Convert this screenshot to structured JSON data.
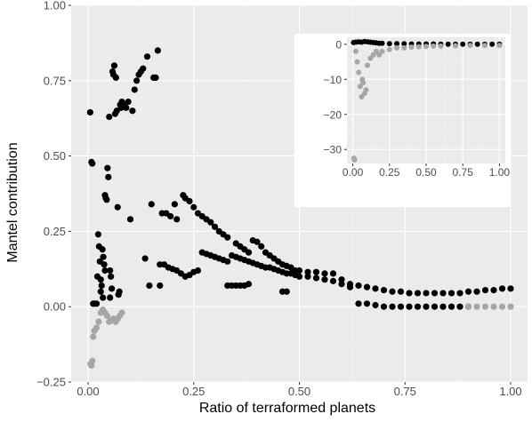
{
  "chart_data": [
    {
      "type": "scatter",
      "title": "",
      "xlabel": "Ratio of terraformed planets",
      "ylabel": "Mantel contribution",
      "xlim": [
        -0.04,
        1.04
      ],
      "ylim": [
        -0.25,
        1.0
      ],
      "x_ticks": [
        0.0,
        0.25,
        0.5,
        0.75,
        1.0
      ],
      "x_tick_labels": [
        "0.00",
        "0.25",
        "0.50",
        "0.75",
        "1.00"
      ],
      "y_ticks": [
        -0.25,
        0.0,
        0.25,
        0.5,
        0.75,
        1.0
      ],
      "y_tick_labels": [
        "−0.25",
        "0.00",
        "0.25",
        "0.50",
        "0.75",
        "1.00"
      ],
      "grid": true,
      "background": "#ebebeb",
      "series": [
        {
          "color": "#000000",
          "points": [
            [
              0.005,
              0.645
            ],
            [
              0.008,
              0.48
            ],
            [
              0.01,
              0.475
            ],
            [
              0.012,
              0.01
            ],
            [
              0.015,
              0.01
            ],
            [
              0.02,
              0.01
            ],
            [
              0.022,
              0.1
            ],
            [
              0.024,
              0.24
            ],
            [
              0.026,
              0.2
            ],
            [
              0.028,
              0.15
            ],
            [
              0.03,
              0.05
            ],
            [
              0.032,
              0.07
            ],
            [
              0.034,
              0.19
            ],
            [
              0.036,
              0.165
            ],
            [
              0.038,
              0.14
            ],
            [
              0.04,
              0.37
            ],
            [
              0.042,
              0.36
            ],
            [
              0.044,
              0.355
            ],
            [
              0.046,
              0.46
            ],
            [
              0.048,
              0.43
            ],
            [
              0.05,
              0.63
            ],
            [
              0.052,
              0.12
            ],
            [
              0.054,
              0.1
            ],
            [
              0.056,
              0.06
            ],
            [
              0.058,
              0.78
            ],
            [
              0.06,
              0.77
            ],
            [
              0.062,
              0.8
            ],
            [
              0.064,
              0.64
            ],
            [
              0.066,
              0.76
            ],
            [
              0.068,
              0.65
            ],
            [
              0.07,
              0.33
            ],
            [
              0.072,
              0.04
            ],
            [
              0.074,
              0.05
            ],
            [
              0.076,
              0.67
            ],
            [
              0.078,
              0.66
            ],
            [
              0.08,
              0.68
            ],
            [
              0.085,
              0.67
            ],
            [
              0.09,
              0.66
            ],
            [
              0.095,
              0.68
            ],
            [
              0.1,
              0.29
            ],
            [
              0.105,
              0.65
            ],
            [
              0.11,
              0.72
            ],
            [
              0.115,
              0.75
            ],
            [
              0.12,
              0.77
            ],
            [
              0.125,
              0.78
            ],
            [
              0.13,
              0.79
            ],
            [
              0.135,
              0.16
            ],
            [
              0.14,
              0.83
            ],
            [
              0.145,
              0.07
            ],
            [
              0.15,
              0.34
            ],
            [
              0.155,
              0.76
            ],
            [
              0.16,
              0.76
            ],
            [
              0.165,
              0.85
            ],
            [
              0.17,
              0.07
            ],
            [
              0.175,
              0.31
            ],
            [
              0.185,
              0.31
            ],
            [
              0.195,
              0.3
            ],
            [
              0.205,
              0.34
            ],
            [
              0.21,
              0.29
            ],
            [
              0.225,
              0.37
            ],
            [
              0.23,
              0.36
            ],
            [
              0.24,
              0.35
            ],
            [
              0.25,
              0.33
            ],
            [
              0.26,
              0.31
            ],
            [
              0.27,
              0.3
            ],
            [
              0.28,
              0.29
            ],
            [
              0.29,
              0.28
            ],
            [
              0.3,
              0.265
            ],
            [
              0.31,
              0.25
            ],
            [
              0.32,
              0.24
            ],
            [
              0.33,
              0.23
            ],
            [
              0.35,
              0.21
            ],
            [
              0.36,
              0.2
            ],
            [
              0.37,
              0.19
            ],
            [
              0.38,
              0.18
            ],
            [
              0.39,
              0.22
            ],
            [
              0.4,
              0.215
            ],
            [
              0.41,
              0.2
            ],
            [
              0.42,
              0.18
            ],
            [
              0.43,
              0.17
            ],
            [
              0.44,
              0.16
            ],
            [
              0.45,
              0.15
            ],
            [
              0.46,
              0.14
            ],
            [
              0.47,
              0.135
            ],
            [
              0.48,
              0.13
            ],
            [
              0.49,
              0.12
            ],
            [
              0.5,
              0.12
            ],
            [
              0.52,
              0.115
            ],
            [
              0.54,
              0.115
            ],
            [
              0.56,
              0.11
            ],
            [
              0.58,
              0.11
            ],
            [
              0.6,
              0.09
            ],
            [
              0.62,
              0.075
            ],
            [
              0.64,
              0.07
            ],
            [
              0.66,
              0.065
            ],
            [
              0.68,
              0.06
            ],
            [
              0.7,
              0.055
            ],
            [
              0.72,
              0.05
            ],
            [
              0.74,
              0.05
            ],
            [
              0.76,
              0.045
            ],
            [
              0.78,
              0.045
            ],
            [
              0.8,
              0.045
            ],
            [
              0.82,
              0.045
            ],
            [
              0.84,
              0.045
            ],
            [
              0.86,
              0.045
            ],
            [
              0.88,
              0.045
            ],
            [
              0.9,
              0.05
            ],
            [
              0.92,
              0.05
            ],
            [
              0.94,
              0.055
            ],
            [
              0.96,
              0.055
            ],
            [
              0.98,
              0.06
            ],
            [
              1.0,
              0.06
            ],
            [
              0.17,
              0.14
            ],
            [
              0.18,
              0.14
            ],
            [
              0.19,
              0.13
            ],
            [
              0.2,
              0.125
            ],
            [
              0.21,
              0.12
            ],
            [
              0.22,
              0.11
            ],
            [
              0.23,
              0.1
            ],
            [
              0.24,
              0.105
            ],
            [
              0.25,
              0.115
            ],
            [
              0.26,
              0.12
            ],
            [
              0.27,
              0.18
            ],
            [
              0.28,
              0.175
            ],
            [
              0.29,
              0.17
            ],
            [
              0.3,
              0.165
            ],
            [
              0.31,
              0.16
            ],
            [
              0.32,
              0.155
            ],
            [
              0.33,
              0.15
            ],
            [
              0.34,
              0.17
            ],
            [
              0.35,
              0.165
            ],
            [
              0.36,
              0.16
            ],
            [
              0.37,
              0.155
            ],
            [
              0.38,
              0.15
            ],
            [
              0.39,
              0.145
            ],
            [
              0.4,
              0.14
            ],
            [
              0.41,
              0.135
            ],
            [
              0.42,
              0.13
            ],
            [
              0.43,
              0.13
            ],
            [
              0.44,
              0.125
            ],
            [
              0.45,
              0.12
            ],
            [
              0.46,
              0.115
            ],
            [
              0.47,
              0.11
            ],
            [
              0.48,
              0.11
            ],
            [
              0.49,
              0.105
            ],
            [
              0.5,
              0.1
            ],
            [
              0.52,
              0.1
            ],
            [
              0.54,
              0.095
            ],
            [
              0.56,
              0.09
            ],
            [
              0.58,
              0.085
            ],
            [
              0.6,
              0.075
            ],
            [
              0.62,
              0.065
            ],
            [
              0.64,
              0.01
            ],
            [
              0.66,
              0.01
            ],
            [
              0.68,
              0.005
            ],
            [
              0.7,
              0.0
            ],
            [
              0.72,
              0.0
            ],
            [
              0.74,
              0.0
            ],
            [
              0.76,
              0.0
            ],
            [
              0.78,
              0.0
            ],
            [
              0.8,
              0.0
            ],
            [
              0.82,
              0.0
            ],
            [
              0.84,
              0.0
            ],
            [
              0.86,
              0.0
            ],
            [
              0.88,
              0.0
            ],
            [
              0.9,
              0.0
            ],
            [
              0.35,
              0.07
            ],
            [
              0.36,
              0.07
            ],
            [
              0.37,
              0.07
            ],
            [
              0.33,
              0.07
            ],
            [
              0.34,
              0.07
            ],
            [
              0.38,
              0.075
            ],
            [
              0.46,
              0.05
            ],
            [
              0.47,
              0.05
            ],
            [
              0.03,
              0.09
            ],
            [
              0.035,
              0.03
            ],
            [
              0.04,
              0.12
            ],
            [
              0.052,
              0.03
            ]
          ]
        },
        {
          "color": "#a6a6a6",
          "points": [
            [
              0.006,
              -0.19
            ],
            [
              0.008,
              -0.195
            ],
            [
              0.01,
              -0.18
            ],
            [
              0.012,
              -0.1
            ],
            [
              0.015,
              -0.08
            ],
            [
              0.02,
              -0.07
            ],
            [
              0.025,
              -0.05
            ],
            [
              0.03,
              -0.02
            ],
            [
              0.035,
              -0.01
            ],
            [
              0.04,
              -0.02
            ],
            [
              0.045,
              -0.03
            ],
            [
              0.05,
              -0.05
            ],
            [
              0.055,
              -0.045
            ],
            [
              0.06,
              -0.04
            ],
            [
              0.065,
              -0.05
            ],
            [
              0.07,
              -0.04
            ],
            [
              0.075,
              -0.03
            ],
            [
              0.08,
              -0.02
            ],
            [
              0.9,
              0.0
            ],
            [
              0.92,
              0.0
            ],
            [
              0.94,
              0.0
            ],
            [
              0.96,
              0.0
            ],
            [
              0.98,
              0.0
            ],
            [
              1.0,
              0.0
            ]
          ]
        }
      ]
    },
    {
      "type": "scatter",
      "title": "",
      "xlabel": "",
      "ylabel": "",
      "xlim": [
        -0.04,
        1.04
      ],
      "ylim": [
        -34,
        2
      ],
      "x_ticks": [
        0.0,
        0.25,
        0.5,
        0.75,
        1.0
      ],
      "x_tick_labels": [
        "0.00",
        "0.25",
        "0.50",
        "0.75",
        "1.00"
      ],
      "y_ticks": [
        -30,
        -20,
        -10,
        0
      ],
      "y_tick_labels": [
        "−30",
        "−20",
        "−10",
        "0"
      ],
      "grid": true,
      "background": "#ebebeb",
      "series": [
        {
          "color": "#000000",
          "points": [
            [
              0.005,
              0.5
            ],
            [
              0.02,
              0.6
            ],
            [
              0.04,
              0.7
            ],
            [
              0.06,
              0.6
            ],
            [
              0.08,
              0.8
            ],
            [
              0.1,
              0.7
            ],
            [
              0.12,
              0.6
            ],
            [
              0.14,
              0.5
            ],
            [
              0.16,
              0.4
            ],
            [
              0.18,
              0.3
            ],
            [
              0.2,
              0.3
            ],
            [
              0.25,
              0.2
            ],
            [
              0.3,
              0.2
            ],
            [
              0.35,
              0.15
            ],
            [
              0.4,
              0.1
            ],
            [
              0.45,
              0.1
            ],
            [
              0.5,
              0.1
            ],
            [
              0.55,
              0.1
            ],
            [
              0.6,
              0.05
            ],
            [
              0.65,
              0.05
            ],
            [
              0.7,
              0.05
            ],
            [
              0.75,
              0.05
            ],
            [
              0.8,
              0.05
            ],
            [
              0.85,
              0.05
            ],
            [
              0.9,
              0.05
            ],
            [
              0.95,
              0.05
            ],
            [
              1.0,
              0.05
            ]
          ]
        },
        {
          "color": "#a6a6a6",
          "points": [
            [
              0.008,
              -32.5
            ],
            [
              0.012,
              -33
            ],
            [
              0.02,
              -2
            ],
            [
              0.03,
              -5
            ],
            [
              0.04,
              -8
            ],
            [
              0.05,
              -12
            ],
            [
              0.06,
              -15
            ],
            [
              0.065,
              -10
            ],
            [
              0.07,
              -11
            ],
            [
              0.08,
              -14
            ],
            [
              0.09,
              -13
            ],
            [
              0.1,
              -6
            ],
            [
              0.12,
              -4
            ],
            [
              0.14,
              -3
            ],
            [
              0.16,
              -2
            ],
            [
              0.18,
              -3
            ],
            [
              0.2,
              -2
            ],
            [
              0.25,
              -1.5
            ],
            [
              0.3,
              -1
            ],
            [
              0.35,
              -1
            ],
            [
              0.4,
              -0.8
            ],
            [
              0.45,
              -0.7
            ],
            [
              0.5,
              -0.6
            ],
            [
              0.55,
              -0.5
            ],
            [
              0.6,
              -0.5
            ],
            [
              0.7,
              -0.4
            ],
            [
              0.8,
              -0.3
            ],
            [
              0.9,
              -0.3
            ],
            [
              1.0,
              -0.3
            ]
          ]
        }
      ]
    }
  ]
}
